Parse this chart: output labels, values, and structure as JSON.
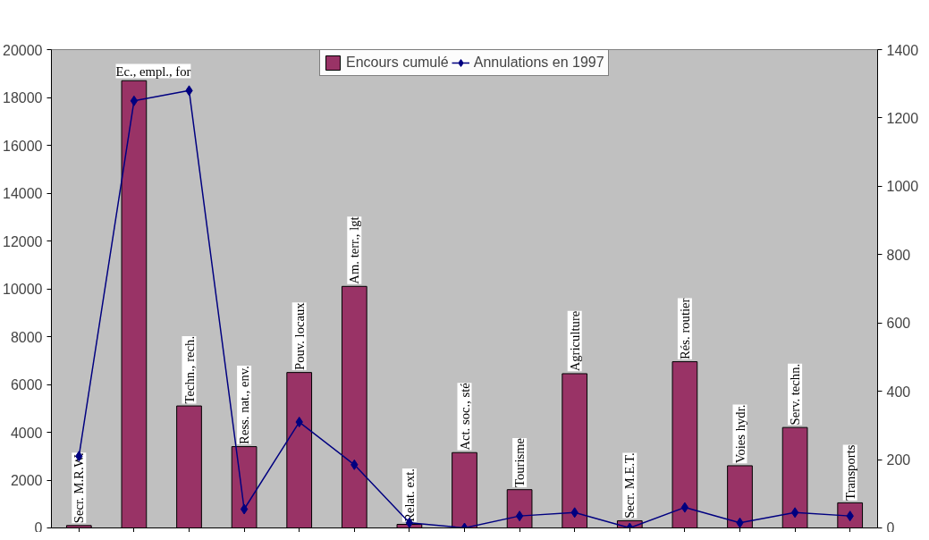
{
  "chart_data": {
    "type": "bar",
    "categories": [
      "Secr. M.R.W.",
      "Ec., empl., for",
      "Techn., rech.",
      "Ress. nat., env.",
      "Pouv. locaux",
      "Am. terr., lgt",
      "Relat. ext.",
      "Act. soc., sté",
      "Tourisme",
      "Agriculture",
      "Secr. M.E.T.",
      "Rés. routier",
      "Voies hydr.",
      "Serv. techn.",
      "Transports"
    ],
    "series": [
      {
        "name": "Encours cumulé",
        "color": "#993366",
        "values": [
          100,
          18700,
          5100,
          3400,
          6500,
          10100,
          150,
          3150,
          1600,
          6450,
          300,
          6950,
          2600,
          4200,
          1050
        ]
      },
      {
        "name": "Annulations en 1997",
        "type": "line",
        "axis": "y2",
        "color": "#000080",
        "marker": "diamond",
        "values": [
          210,
          1250,
          1280,
          55,
          310,
          185,
          15,
          0,
          35,
          45,
          0,
          60,
          15,
          45,
          35
        ]
      }
    ],
    "ylim": [
      0,
      20000
    ],
    "yticks": [
      0,
      2000,
      4000,
      6000,
      8000,
      10000,
      12000,
      14000,
      16000,
      18000,
      20000
    ],
    "y2lim": [
      0,
      1400
    ],
    "y2ticks": [
      0,
      200,
      400,
      600,
      800,
      1000,
      1200,
      1400
    ],
    "grid": false,
    "legend": "top"
  }
}
